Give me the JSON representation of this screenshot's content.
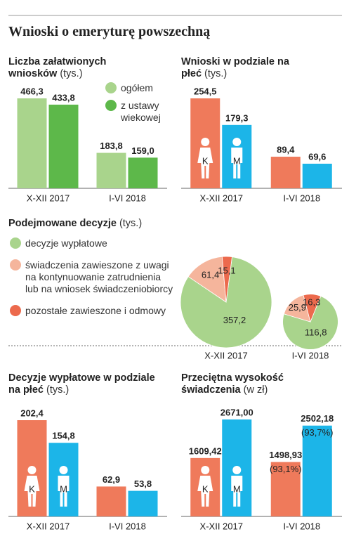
{
  "title": "Wnioski o emeryturę powszechną",
  "chart_data": [
    {
      "type": "bar",
      "title": "Liczba załatwionych wniosków",
      "subtitle": "(tys.)",
      "categories": [
        "X-XII 2017",
        "I-VI 2018"
      ],
      "series": [
        {
          "name": "ogółem",
          "color": "#a9d48c",
          "values": [
            466.3,
            183.8
          ],
          "value_labels": [
            "466,3",
            "183,8"
          ]
        },
        {
          "name": "z ustawy wiekowej",
          "color": "#5db84a",
          "values": [
            433.8,
            159.0
          ],
          "value_labels": [
            "433,8",
            "159,0"
          ]
        }
      ]
    },
    {
      "type": "bar",
      "title": "Wnioski w  podziale na płeć",
      "subtitle": "(tys.)",
      "categories": [
        "X-XII 2017",
        "I-VI 2018"
      ],
      "series": [
        {
          "name": "K",
          "color": "#ef7a5b",
          "values": [
            254.5,
            89.4
          ],
          "value_labels": [
            "254,5",
            "89,4"
          ]
        },
        {
          "name": "M",
          "color": "#1cb5e8",
          "values": [
            179.3,
            69.6
          ],
          "value_labels": [
            "179,3",
            "69,6"
          ]
        }
      ]
    },
    {
      "type": "pie",
      "title": "Podejmowane decyzje",
      "subtitle": "(tys.)",
      "categories": [
        "X-XII 2017",
        "I-VI 2018"
      ],
      "series": [
        {
          "name": "decyzje wypłatowe",
          "color": "#a9d48c",
          "values": [
            357.2,
            116.8
          ],
          "value_labels": [
            "357,2",
            "116,8"
          ]
        },
        {
          "name": "świadczenia zawieszone z uwagi na kontynuowanie zatrudnienia lub na wniosek świadczeniobiorcy",
          "color": "#f5b59c",
          "values": [
            61.4,
            25.9
          ],
          "value_labels": [
            "61,4",
            "25,9"
          ]
        },
        {
          "name": "pozostałe zawieszone i odmowy",
          "color": "#ec6a4d",
          "values": [
            15.1,
            16.3
          ],
          "value_labels": [
            "15,1",
            "16,3"
          ]
        }
      ]
    },
    {
      "type": "bar",
      "title": "Decyzje wypłatowe w podziale na płeć",
      "subtitle": "(tys.)",
      "categories": [
        "X-XII 2017",
        "I-VI 2018"
      ],
      "series": [
        {
          "name": "K",
          "color": "#ef7a5b",
          "values": [
            202.4,
            62.9
          ],
          "value_labels": [
            "202,4",
            "62,9"
          ]
        },
        {
          "name": "M",
          "color": "#1cb5e8",
          "values": [
            154.8,
            53.8
          ],
          "value_labels": [
            "154,8",
            "53,8"
          ]
        }
      ]
    },
    {
      "type": "bar",
      "title": "Przeciętna wysokość świadczenia",
      "subtitle": "(w zł)",
      "categories": [
        "X-XII 2017",
        "I-VI 2018"
      ],
      "series": [
        {
          "name": "K",
          "color": "#ef7a5b",
          "values": [
            1609.42,
            1498.93
          ],
          "value_labels": [
            "1609,42",
            "1498,93"
          ],
          "annotations": [
            null,
            "(93,1%)"
          ]
        },
        {
          "name": "M",
          "color": "#1cb5e8",
          "values": [
            2671.0,
            2502.18
          ],
          "value_labels": [
            "2671,00",
            "2502,18"
          ],
          "annotations": [
            null,
            "(93,7%)"
          ]
        }
      ]
    }
  ]
}
